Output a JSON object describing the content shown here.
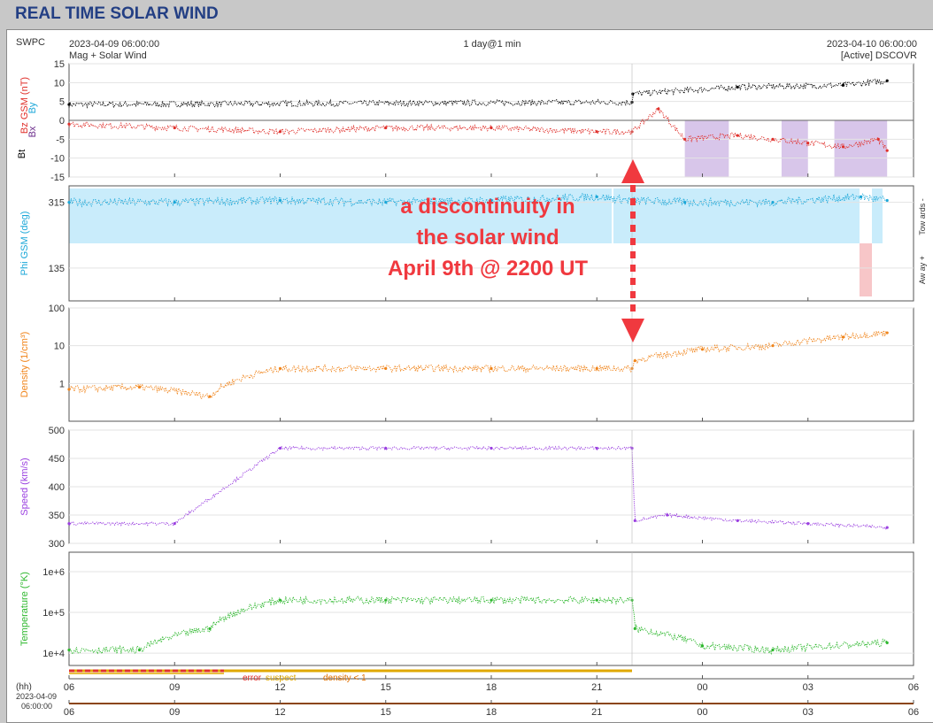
{
  "page_title": "REAL TIME SOLAR WIND",
  "header": {
    "source": "SWPC",
    "start": "2023-04-09 06:00:00",
    "end": "2023-04-10 06:00:00",
    "span": "1 day@1 min",
    "dataset": "Mag + Solar Wind",
    "spacecraft": "[Active] DSCOVR"
  },
  "annotation": {
    "lines": [
      "a discontinuity in",
      "the solar wind",
      "April 9th @ 2200 UT"
    ],
    "color": "#f0393f"
  },
  "footer": {
    "hh_label": "(hh)",
    "date_label": "2023-04-09",
    "time_label": "06:00:00",
    "legend_error": "error",
    "legend_suspect": "suspect",
    "legend_density": "density < 1"
  },
  "chart_data": {
    "type": "line",
    "x_axis": {
      "label": "(hh)",
      "start": "2023-04-09 06:00",
      "end": "2023-04-10 06:00",
      "tick_labels": [
        "06",
        "09",
        "12",
        "15",
        "18",
        "21",
        "00",
        "03",
        "06"
      ]
    },
    "discontinuity_time": "2023-04-09 22:00",
    "panels": [
      {
        "id": "mag",
        "ylabels": [
          {
            "text": "Bt",
            "color": "#000000"
          },
          {
            "text": "Bz GSM (nT)",
            "color": "#e0302b"
          },
          {
            "text": "Bx",
            "color": "#6a2a8a"
          },
          {
            "text": "By",
            "color": "#1ba7d8"
          }
        ],
        "ylim": [
          -15,
          15
        ],
        "yticks": [
          "15",
          "10",
          "5",
          "0",
          "-5",
          "-10",
          "-15"
        ],
        "series": [
          {
            "name": "Bt",
            "color": "#000000",
            "x": [
              "06:00",
              "22:00",
              "22:01",
              "01:00",
              "04:00",
              "05:15"
            ],
            "y": [
              4.2,
              4.8,
              7.0,
              8.8,
              9.3,
              10.5
            ]
          },
          {
            "name": "Bz GSM",
            "color": "#e0302b",
            "x": [
              "06:00",
              "09:00",
              "12:00",
              "15:00",
              "18:00",
              "21:00",
              "22:00",
              "22:45",
              "23:30",
              "01:00",
              "02:00",
              "03:00",
              "04:00",
              "05:00",
              "05:15"
            ],
            "y": [
              -1,
              -2,
              -3,
              -2,
              -2,
              -3,
              -3,
              3,
              -5,
              -4,
              -5,
              -6,
              -7,
              -5,
              -8
            ]
          }
        ],
        "shaded_intervals": [
          [
            "23:30",
            "00:45"
          ],
          [
            "02:15",
            "03:00"
          ],
          [
            "03:45",
            "05:15"
          ]
        ],
        "shade_color": "#d8c6ea"
      },
      {
        "id": "phi",
        "ylabel": "Phi GSM (deg)",
        "ylabel_color": "#1ba7d8",
        "yticks": [
          "315",
          "135"
        ],
        "right_labels": [
          "Tow ards -",
          "Aw ay +"
        ],
        "series": [
          {
            "name": "Phi GSM",
            "color": "#1ba7d8",
            "x": [
              "06:00",
              "09:00",
              "12:00",
              "15:00",
              "18:00",
              "21:00",
              "22:00",
              "23:30",
              "02:00",
              "04:30",
              "05:15"
            ],
            "y": [
              315,
              315,
              320,
              315,
              320,
              330,
              320,
              315,
              315,
              330,
              320
            ]
          }
        ],
        "toward_band_color": "#c9ecfb",
        "away_band_color": "#f7c6c8"
      },
      {
        "id": "density",
        "ylabel": "Density (1/cm³)",
        "ylabel_color": "#f0841a",
        "scale": "log",
        "ylim": [
          0.1,
          100
        ],
        "yticks": [
          "100",
          "10",
          "1"
        ],
        "series": [
          {
            "name": "Density",
            "color": "#f0841a",
            "x": [
              "06:00",
              "08:00",
              "10:00",
              "12:00",
              "15:00",
              "18:00",
              "21:00",
              "22:00",
              "22:05",
              "00:00",
              "02:00",
              "04:00",
              "05:15"
            ],
            "y": [
              0.7,
              0.8,
              0.45,
              2.5,
              2.5,
              2.5,
              2.5,
              2.5,
              4,
              8,
              10,
              17,
              22
            ]
          }
        ]
      },
      {
        "id": "speed",
        "ylabel": "Speed (km/s)",
        "ylabel_color": "#9a3fe0",
        "ylim": [
          300,
          500
        ],
        "yticks": [
          "500",
          "450",
          "400",
          "350",
          "300"
        ],
        "series": [
          {
            "name": "Speed",
            "color": "#9a3fe0",
            "x": [
              "06:00",
              "09:00",
              "12:00",
              "15:00",
              "18:00",
              "21:00",
              "22:00",
              "22:05",
              "23:00",
              "01:00",
              "03:00",
              "05:15"
            ],
            "y": [
              335,
              335,
              468,
              468,
              468,
              468,
              468,
              340,
              350,
              340,
              335,
              328
            ]
          }
        ]
      },
      {
        "id": "temperature",
        "ylabel": "Temperature (°K)",
        "ylabel_color": "#2fb82f",
        "scale": "log",
        "ylim": [
          5000,
          3000000
        ],
        "yticks": [
          "1e+6",
          "1e+5",
          "1e+4"
        ],
        "series": [
          {
            "name": "Temperature",
            "color": "#2fb82f",
            "x": [
              "06:00",
              "08:00",
              "10:00",
              "12:00",
              "15:00",
              "18:00",
              "21:00",
              "22:00",
              "22:05",
              "00:00",
              "02:00",
              "05:15"
            ],
            "y": [
              12000,
              12000,
              40000,
              200000,
              200000,
              200000,
              200000,
              200000,
              40000,
              15000,
              12000,
              18000
            ]
          }
        ]
      }
    ]
  }
}
